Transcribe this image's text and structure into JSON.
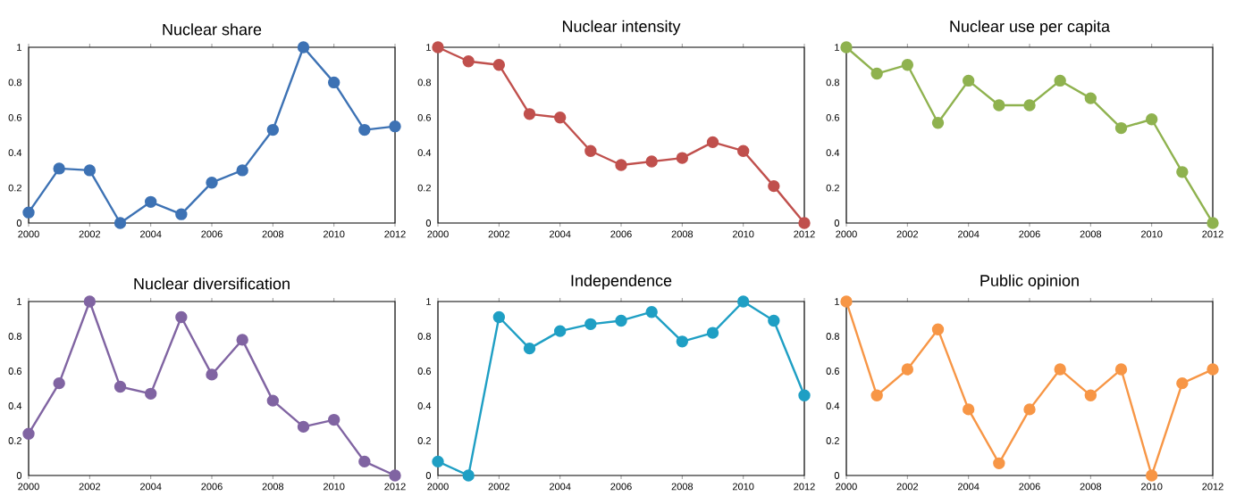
{
  "chart_data": [
    {
      "type": "line",
      "title": "Nuclear share",
      "x": [
        2000,
        2001,
        2002,
        2003,
        2004,
        2005,
        2006,
        2007,
        2008,
        2009,
        2010,
        2011,
        2012
      ],
      "values": [
        0.06,
        0.31,
        0.3,
        0,
        0.12,
        0.05,
        0.23,
        0.3,
        0.53,
        1,
        0.8,
        0.53,
        0.55
      ],
      "color": "#3d72b4",
      "marker": "circle",
      "xlim": [
        2000,
        2012
      ],
      "ylim": [
        0,
        1
      ],
      "xticks": [
        2000,
        2002,
        2004,
        2006,
        2008,
        2010,
        2012
      ],
      "yticks": [
        0,
        0.2,
        0.4,
        0.6,
        0.8,
        1
      ]
    },
    {
      "type": "line",
      "title": "Nuclear intensity",
      "x": [
        2000,
        2001,
        2002,
        2003,
        2004,
        2005,
        2006,
        2007,
        2008,
        2009,
        2010,
        2011,
        2012
      ],
      "values": [
        1,
        0.92,
        0.9,
        0.62,
        0.6,
        0.41,
        0.33,
        0.35,
        0.37,
        0.46,
        0.41,
        0.21,
        0
      ],
      "color": "#c0504d",
      "marker": "circle",
      "xlim": [
        2000,
        2012
      ],
      "ylim": [
        0,
        1
      ],
      "xticks": [
        2000,
        2002,
        2004,
        2006,
        2008,
        2010,
        2012
      ],
      "yticks": [
        0,
        0.2,
        0.4,
        0.6,
        0.8,
        1
      ]
    },
    {
      "type": "line",
      "title": "Nuclear use per capita",
      "x": [
        2000,
        2001,
        2002,
        2003,
        2004,
        2005,
        2006,
        2007,
        2008,
        2009,
        2010,
        2011,
        2012
      ],
      "values": [
        1,
        0.85,
        0.9,
        0.57,
        0.81,
        0.67,
        0.67,
        0.81,
        0.71,
        0.54,
        0.59,
        0.29,
        0
      ],
      "color": "#8fb24f",
      "marker": "circle",
      "xlim": [
        2000,
        2012
      ],
      "ylim": [
        0,
        1
      ],
      "xticks": [
        2000,
        2002,
        2004,
        2006,
        2008,
        2010,
        2012
      ],
      "yticks": [
        0,
        0.2,
        0.4,
        0.6,
        0.8,
        1
      ]
    },
    {
      "type": "line",
      "title": "Nuclear diversification",
      "x": [
        2000,
        2001,
        2002,
        2003,
        2004,
        2005,
        2006,
        2007,
        2008,
        2009,
        2010,
        2011,
        2012
      ],
      "values": [
        0.24,
        0.53,
        1,
        0.51,
        0.47,
        0.91,
        0.58,
        0.78,
        0.43,
        0.28,
        0.32,
        0.08,
        0
      ],
      "color": "#8064a2",
      "marker": "circle",
      "xlim": [
        2000,
        2012
      ],
      "ylim": [
        0,
        1
      ],
      "xticks": [
        2000,
        2002,
        2004,
        2006,
        2008,
        2010,
        2012
      ],
      "yticks": [
        0,
        0.2,
        0.4,
        0.6,
        0.8,
        1
      ]
    },
    {
      "type": "line",
      "title": "Independence",
      "x": [
        2000,
        2001,
        2002,
        2003,
        2004,
        2005,
        2006,
        2007,
        2008,
        2009,
        2010,
        2011,
        2012
      ],
      "values": [
        0.08,
        0,
        0.91,
        0.73,
        0.83,
        0.87,
        0.89,
        0.94,
        0.77,
        0.82,
        1,
        0.89,
        0.46
      ],
      "color": "#1f9fc4",
      "marker": "circle",
      "xlim": [
        2000,
        2012
      ],
      "ylim": [
        0,
        1
      ],
      "xticks": [
        2000,
        2002,
        2004,
        2006,
        2008,
        2010,
        2012
      ],
      "yticks": [
        0,
        0.2,
        0.4,
        0.6,
        0.8,
        1
      ]
    },
    {
      "type": "line",
      "title": "Public opinion",
      "x": [
        2000,
        2001,
        2002,
        2003,
        2004,
        2005,
        2006,
        2007,
        2008,
        2009,
        2010,
        2011,
        2012
      ],
      "values": [
        1,
        0.46,
        0.61,
        0.84,
        0.38,
        0.07,
        0.38,
        0.61,
        0.46,
        0.61,
        0,
        0.53,
        0.61
      ],
      "color": "#f79646",
      "marker": "circle",
      "xlim": [
        2000,
        2012
      ],
      "ylim": [
        0,
        1
      ],
      "xticks": [
        2000,
        2002,
        2004,
        2006,
        2008,
        2010,
        2012
      ],
      "yticks": [
        0,
        0.2,
        0.4,
        0.6,
        0.8,
        1
      ]
    }
  ]
}
